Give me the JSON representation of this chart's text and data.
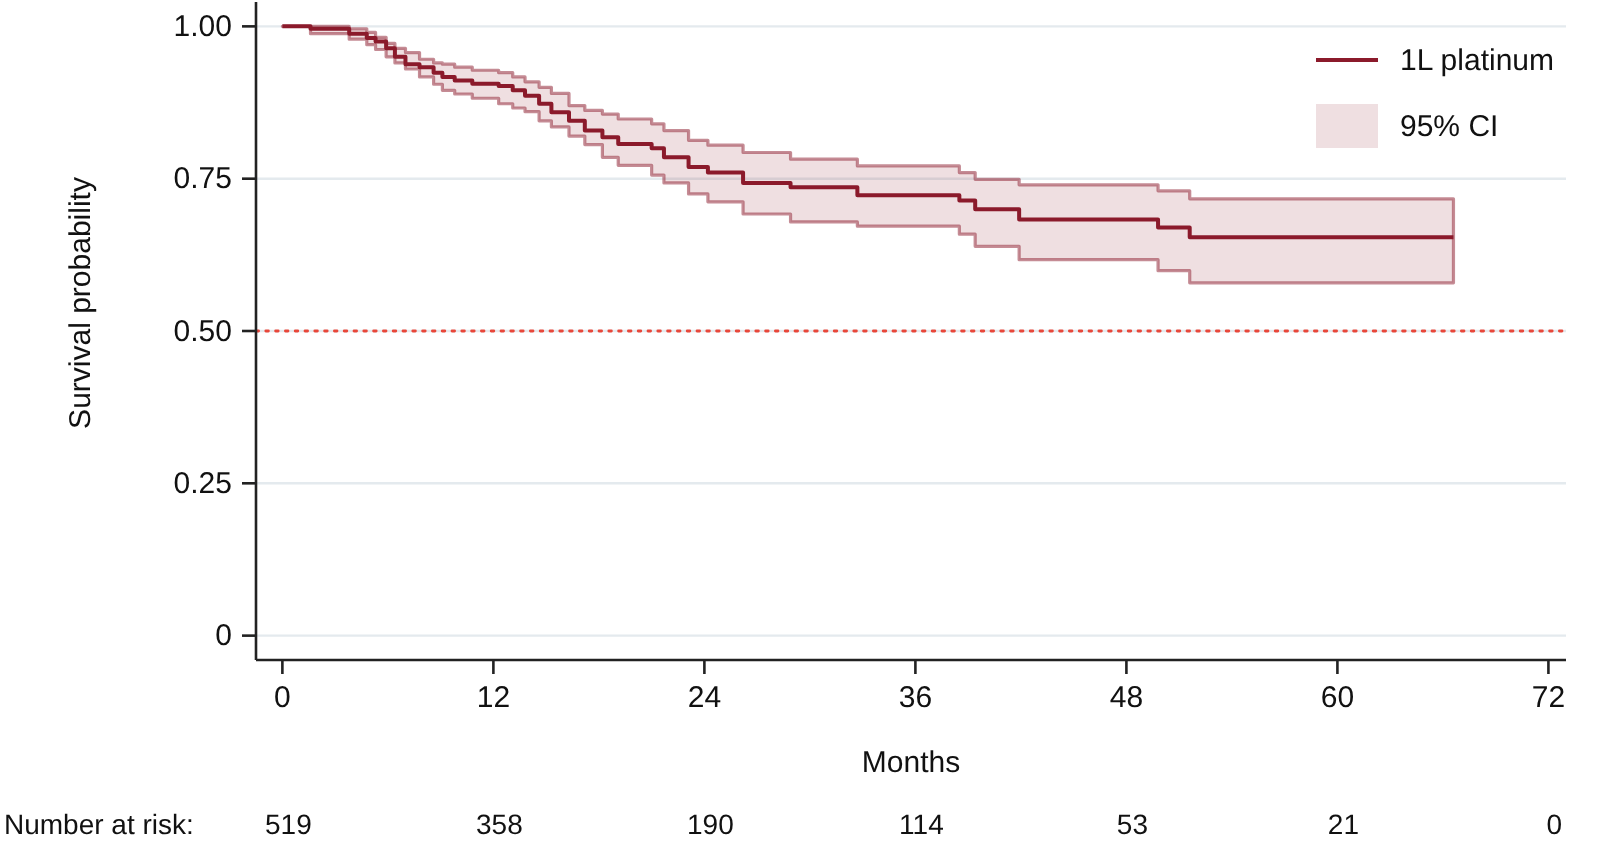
{
  "chart_data": {
    "type": "step",
    "xlabel": "Months",
    "ylabel": "Survival probability",
    "x": [
      0,
      1.6,
      3.8,
      4.8,
      5.3,
      5.9,
      6.4,
      7.0,
      7.8,
      8.6,
      9.1,
      9.8,
      10.8,
      12.3,
      13.1,
      13.8,
      14.6,
      15.3,
      16.3,
      17.2,
      18.2,
      19.1,
      21.0,
      21.7,
      23.1,
      24.2,
      26.2,
      28.9,
      32.7,
      38.5,
      39.4,
      41.9,
      49.8,
      51.6,
      66.6
    ],
    "series": [
      {
        "name": "1L platinum",
        "color": "#8b1a2b",
        "values": [
          1.0,
          0.996,
          0.988,
          0.981,
          0.975,
          0.964,
          0.95,
          0.938,
          0.933,
          0.924,
          0.917,
          0.911,
          0.906,
          0.902,
          0.895,
          0.886,
          0.873,
          0.859,
          0.845,
          0.829,
          0.818,
          0.807,
          0.8,
          0.785,
          0.769,
          0.76,
          0.743,
          0.736,
          0.723,
          0.714,
          0.7,
          0.683,
          0.67,
          0.654,
          0.654
        ],
        "lower": [
          1.0,
          0.988,
          0.979,
          0.97,
          0.962,
          0.95,
          0.94,
          0.93,
          0.917,
          0.905,
          0.895,
          0.889,
          0.882,
          0.873,
          0.866,
          0.86,
          0.845,
          0.835,
          0.82,
          0.806,
          0.785,
          0.772,
          0.756,
          0.743,
          0.725,
          0.712,
          0.692,
          0.679,
          0.672,
          0.659,
          0.639,
          0.617,
          0.599,
          0.579,
          0.579
        ],
        "upper": [
          1.0,
          1.0,
          0.996,
          0.99,
          0.982,
          0.972,
          0.964,
          0.957,
          0.946,
          0.94,
          0.938,
          0.933,
          0.928,
          0.924,
          0.917,
          0.909,
          0.9,
          0.89,
          0.87,
          0.862,
          0.856,
          0.848,
          0.84,
          0.829,
          0.813,
          0.805,
          0.793,
          0.782,
          0.771,
          0.76,
          0.749,
          0.74,
          0.73,
          0.717,
          0.717
        ]
      }
    ],
    "xlim": [
      -1.5,
      73
    ],
    "xticks": [
      0,
      12,
      24,
      36,
      48,
      60,
      72
    ],
    "ylim": [
      -0.04,
      1.04
    ],
    "yticks": [
      0,
      0.25,
      {
        "value": 0.5,
        "label": "0.50"
      },
      0.75,
      {
        "value": 1,
        "label": "1.00"
      }
    ],
    "grid": "y",
    "legend": "top right",
    "ref_lines": [
      {
        "axis": "y",
        "value": 0.5,
        "color": "#e8473a",
        "line_style": "dotted"
      }
    ],
    "annotations": [
      "95% CI",
      "Number at risk:",
      "519",
      "358",
      "190",
      "114",
      "53",
      "21",
      "0"
    ]
  }
}
